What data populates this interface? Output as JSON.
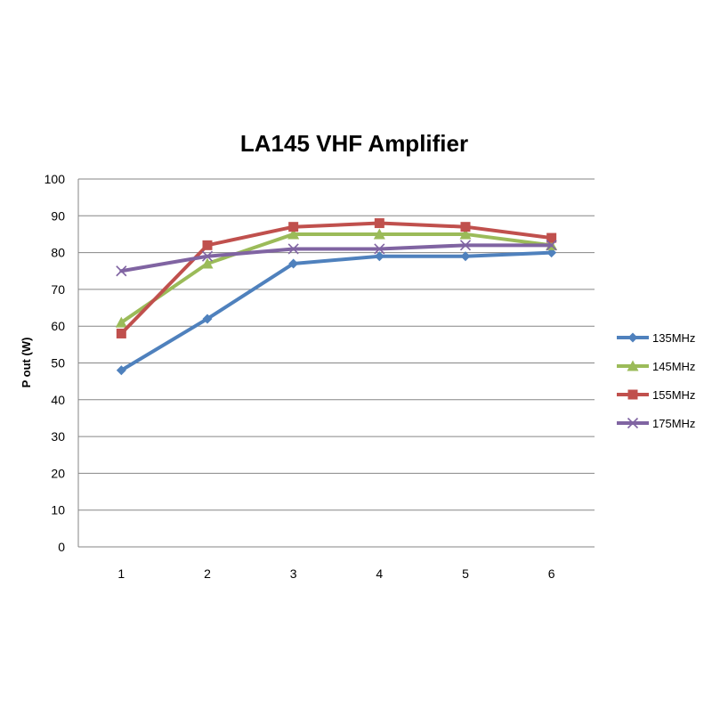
{
  "chart_data": {
    "type": "line",
    "title": "LA145 VHF Amplifier",
    "xlabel": "",
    "ylabel": "P out (W)",
    "x": [
      1,
      2,
      3,
      4,
      5,
      6
    ],
    "ylim": [
      0,
      100
    ],
    "yticks": [
      0,
      10,
      20,
      30,
      40,
      50,
      60,
      70,
      80,
      90,
      100
    ],
    "grid": true,
    "legend_position": "right",
    "series": [
      {
        "name": "135MHz",
        "color": "#4F81BD",
        "marker": "diamond",
        "values": [
          48,
          62,
          77,
          79,
          79,
          80
        ]
      },
      {
        "name": "145MHz",
        "color": "#9BBB59",
        "marker": "triangle",
        "values": [
          61,
          77,
          85,
          85,
          85,
          82
        ]
      },
      {
        "name": "155MHz",
        "color": "#C0504D",
        "marker": "square",
        "values": [
          58,
          82,
          87,
          88,
          87,
          84
        ]
      },
      {
        "name": "175MHz",
        "color": "#8064A2",
        "marker": "x",
        "values": [
          75,
          79,
          81,
          81,
          82,
          82
        ]
      }
    ]
  }
}
